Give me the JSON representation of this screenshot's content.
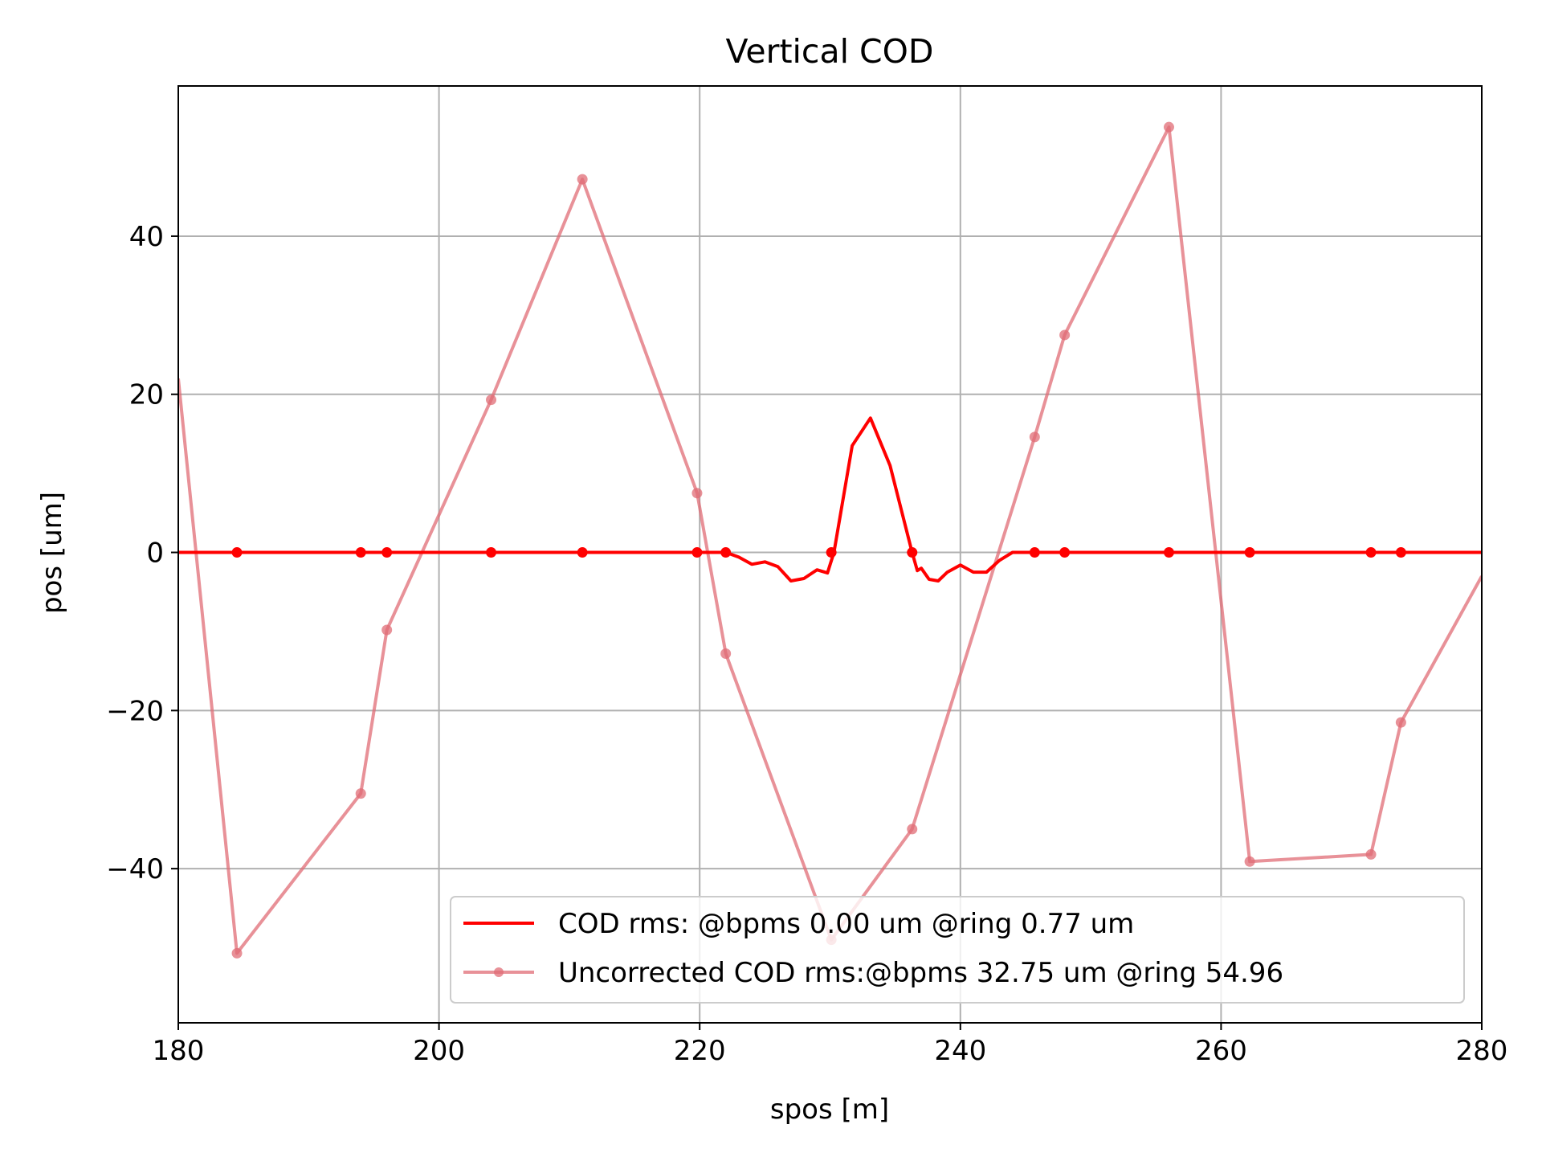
{
  "chart_data": {
    "type": "line",
    "title": "Vertical COD",
    "xlabel": "spos [m]",
    "ylabel": "pos [um]",
    "xlim": [
      180,
      280
    ],
    "ylim": [
      -59.5,
      59.0
    ],
    "xticks": [
      180,
      200,
      220,
      240,
      260,
      280
    ],
    "xtick_labels": [
      "180",
      "200",
      "220",
      "240",
      "260",
      "280"
    ],
    "yticks": [
      -40,
      -20,
      0,
      20,
      40
    ],
    "ytick_labels": [
      "−40",
      "−20",
      "0",
      "20",
      "40"
    ],
    "grid": true,
    "legend_position": "lower-right",
    "colors": {
      "cod": "#ff0000",
      "uncorrected": "#e06c75"
    },
    "series": [
      {
        "name": "COD rms: @bpms 0.00 um @ring 0.77 um",
        "color": "#ff0000",
        "style": "solid-line",
        "x": [
          180,
          184.5,
          194,
          196,
          204,
          211,
          219.8,
          222,
          223,
          224,
          225,
          226,
          227,
          228,
          229,
          229.8,
          230.3,
          231.7,
          233.1,
          234.6,
          236.3,
          236.7,
          237,
          237.6,
          238.3,
          239,
          240,
          241,
          242,
          243,
          244,
          245,
          245.7,
          248,
          256,
          262.2,
          271.5,
          273.8,
          280
        ],
        "y": [
          0,
          0,
          0,
          0,
          0,
          0,
          0,
          0,
          -0.6,
          -1.5,
          -1.2,
          -1.8,
          -3.6,
          -3.3,
          -2.2,
          -2.6,
          0,
          13.5,
          17.0,
          11.0,
          0,
          -2.3,
          -2.0,
          -3.4,
          -3.6,
          -2.5,
          -1.6,
          -2.5,
          -2.5,
          -1.0,
          0,
          0,
          0,
          0,
          0,
          0,
          0,
          0,
          0
        ],
        "markers_x": [
          184.5,
          194,
          196,
          204,
          211,
          219.8,
          222,
          230.1,
          236.3,
          245.7,
          248,
          256,
          262.2,
          271.5,
          273.8
        ],
        "markers_y": [
          0,
          0,
          0,
          0,
          0,
          0,
          0,
          0,
          0,
          0,
          0,
          0,
          0,
          0,
          0
        ]
      },
      {
        "name": "Uncorrected COD rms:@bpms 32.75 um @ring 54.96",
        "color": "#e06c75",
        "style": "line-with-markers",
        "x": [
          180,
          184.5,
          194,
          196,
          204,
          211,
          219.8,
          222,
          230.1,
          236.3,
          245.7,
          248,
          256,
          262.2,
          271.5,
          273.8,
          280
        ],
        "y": [
          22,
          -50.7,
          -30.5,
          -9.8,
          19.3,
          47.2,
          7.5,
          -12.8,
          -49.0,
          -35.0,
          14.6,
          27.5,
          53.8,
          -39.1,
          -38.2,
          -21.5,
          -3.0
        ],
        "markers_x": [
          184.5,
          194,
          196,
          204,
          211,
          219.8,
          222,
          230.1,
          236.3,
          245.7,
          248,
          256,
          262.2,
          271.5,
          273.8
        ],
        "markers_y": [
          -50.7,
          -30.5,
          -9.8,
          19.3,
          47.2,
          7.5,
          -12.8,
          -49.0,
          -35.0,
          14.6,
          27.5,
          53.8,
          -39.1,
          -38.2,
          -21.5
        ]
      }
    ]
  }
}
